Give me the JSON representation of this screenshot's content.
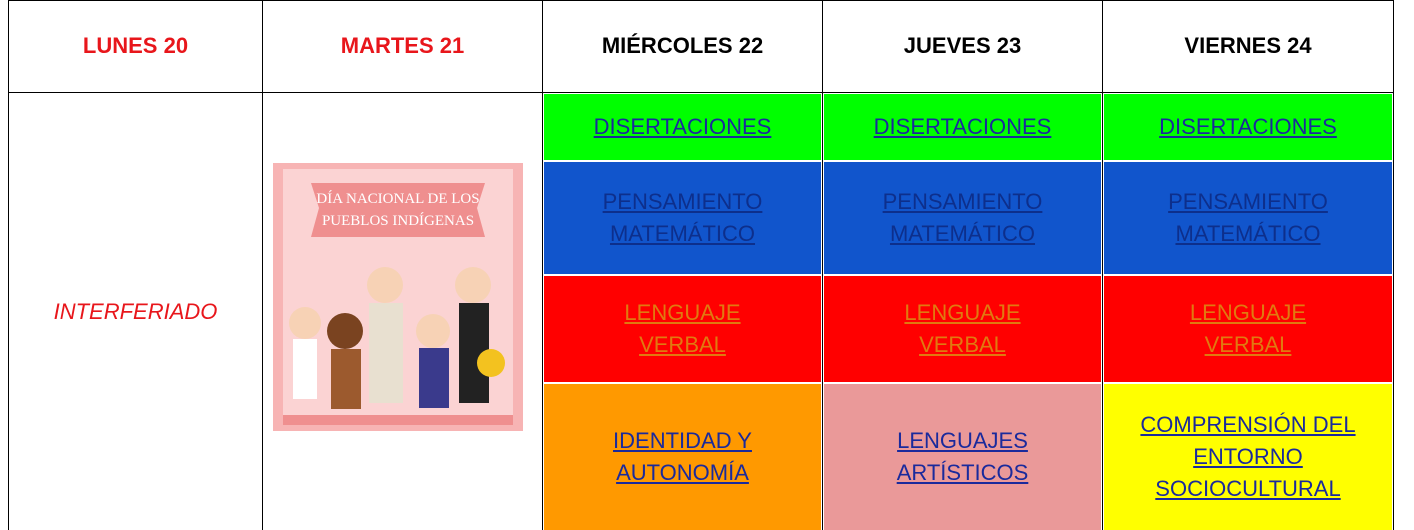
{
  "header": {
    "days": [
      "LUNES 20",
      "MARTES 21",
      "MIÉRCOLES 22",
      "JUEVES 23",
      "VIERNES 24"
    ],
    "day_colors": [
      "#e8161b",
      "#e8161b",
      "#000000",
      "#000000",
      "#000000"
    ]
  },
  "lunes": {
    "note": "INTERFERIADO"
  },
  "martes": {
    "image_caption": [
      "DÍA NACIONAL DE LOS",
      "PUEBLOS INDÍGENAS"
    ]
  },
  "schedule": {
    "columns": [
      {
        "cells": [
          {
            "lines": [
              "DISERTACIONES"
            ],
            "color": "#00ff00"
          },
          {
            "lines": [
              "PENSAMIENTO",
              "MATEMÁTICO"
            ],
            "color": "#1155cc"
          },
          {
            "lines": [
              "LENGUAJE",
              "VERBAL"
            ],
            "color": "#ff0000"
          },
          {
            "lines": [
              "IDENTIDAD Y",
              "AUTONOMÍA"
            ],
            "color": "#ff9900"
          }
        ]
      },
      {
        "cells": [
          {
            "lines": [
              "DISERTACIONES"
            ],
            "color": "#00ff00"
          },
          {
            "lines": [
              "PENSAMIENTO",
              "MATEMÁTICO"
            ],
            "color": "#1155cc"
          },
          {
            "lines": [
              "LENGUAJE",
              "VERBAL"
            ],
            "color": "#ff0000"
          },
          {
            "lines": [
              "LENGUAJES",
              "ARTÍSTICOS"
            ],
            "color": "#ea9999"
          }
        ]
      },
      {
        "cells": [
          {
            "lines": [
              "DISERTACIONES"
            ],
            "color": "#00ff00"
          },
          {
            "lines": [
              "PENSAMIENTO",
              "MATEMÁTICO"
            ],
            "color": "#1155cc"
          },
          {
            "lines": [
              "LENGUAJE",
              "VERBAL"
            ],
            "color": "#ff0000"
          },
          {
            "lines": [
              "COMPRENSIÓN DEL",
              "ENTORNO",
              "SOCIOCULTURAL"
            ],
            "color": "#ffff00"
          }
        ]
      }
    ]
  }
}
